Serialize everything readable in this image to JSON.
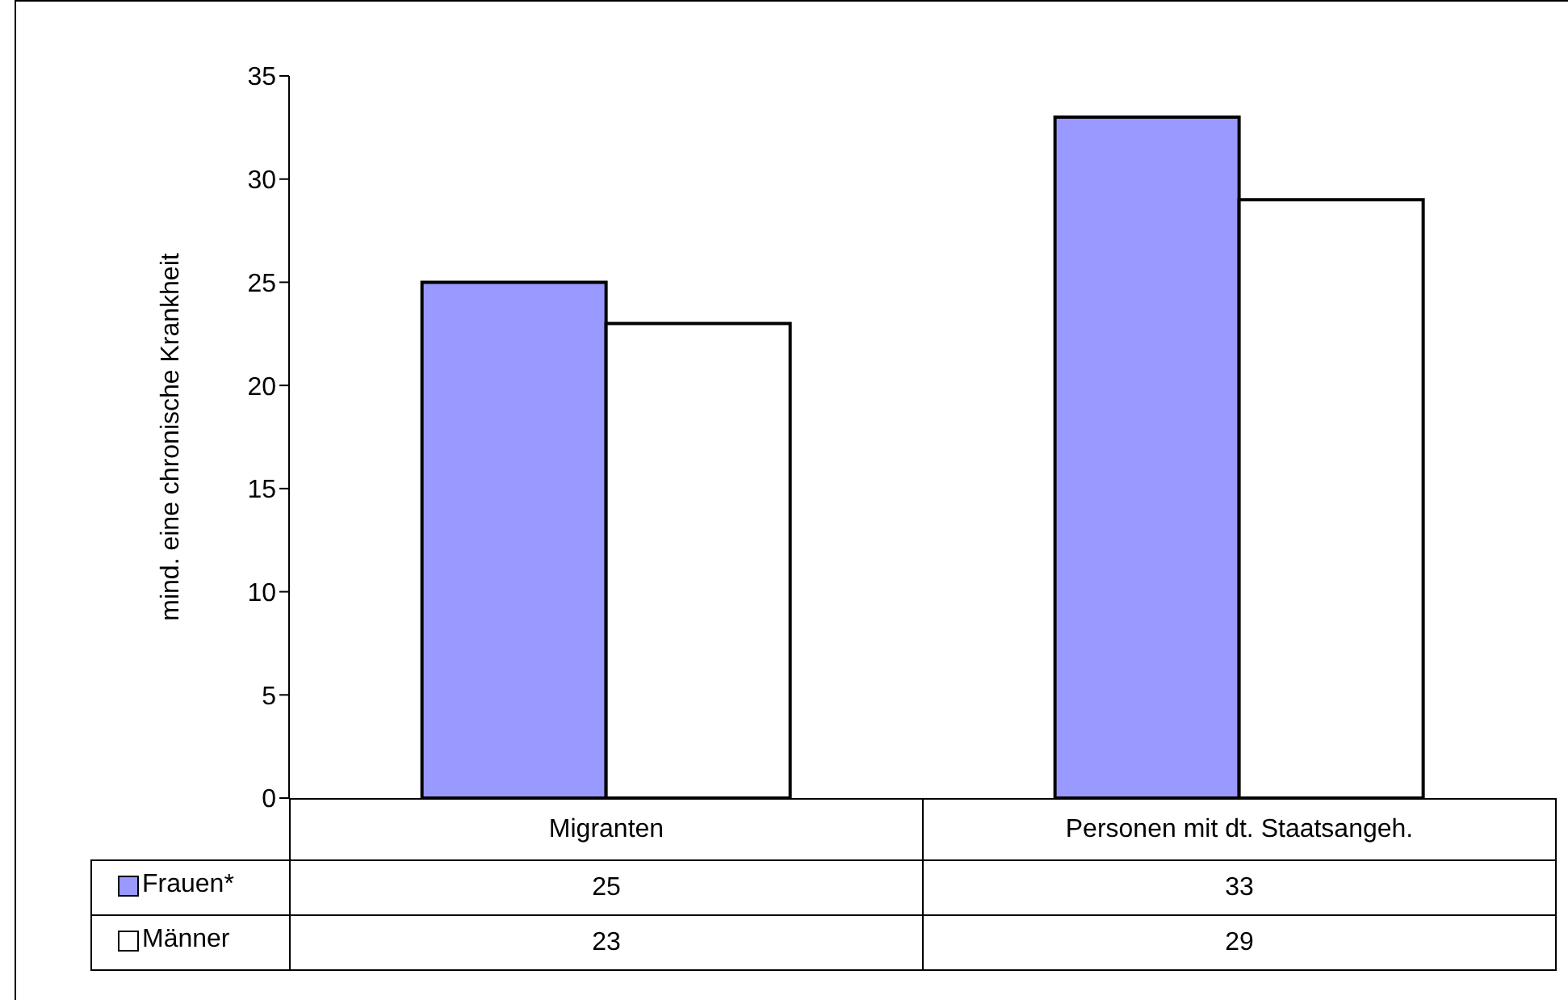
{
  "chart_data": {
    "type": "bar",
    "ylabel": "mind. eine chronische Krankheit",
    "categories": [
      "Migranten",
      "Personen mit dt. Staatsangeh."
    ],
    "series": [
      {
        "name": "Frauen*",
        "color": "#9999ff",
        "values": [
          25,
          33
        ]
      },
      {
        "name": "Männer",
        "color": "#ffffff",
        "values": [
          23,
          29
        ]
      }
    ],
    "ylim": [
      0,
      35
    ],
    "yticks": [
      0,
      5,
      10,
      15,
      20,
      25,
      30,
      35
    ],
    "grid": false,
    "legend": "bottom",
    "data_labels": true
  }
}
